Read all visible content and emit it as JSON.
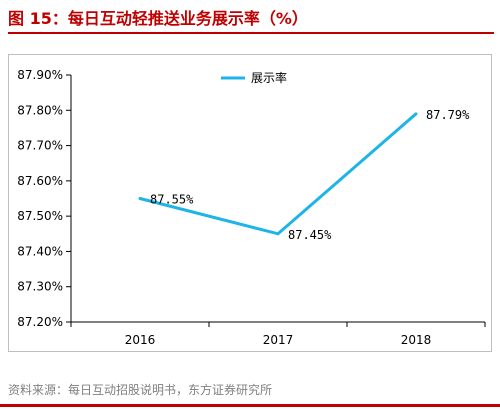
{
  "figure": {
    "title": "图 15：每日互动轻推送业务展示率（%）",
    "source": "资料来源：每日互动招股说明书，东方证券研究所"
  },
  "colors": {
    "accent": "#c00000",
    "series_line": "#1fb4e8",
    "axis": "#000000",
    "frame": "#bfbfbf",
    "source_text": "#808080"
  },
  "chart_data": {
    "type": "line",
    "x": [
      "2016",
      "2017",
      "2018"
    ],
    "series": [
      {
        "name": "展示率",
        "values": [
          87.55,
          87.45,
          87.79
        ]
      }
    ],
    "data_labels": [
      "87.55%",
      "87.45%",
      "87.79%"
    ],
    "ylim": [
      87.2,
      87.9
    ],
    "yticks": [
      87.2,
      87.3,
      87.4,
      87.5,
      87.6,
      87.7,
      87.8,
      87.9
    ],
    "ytick_labels": [
      "87.20%",
      "87.30%",
      "87.40%",
      "87.50%",
      "87.60%",
      "87.70%",
      "87.80%",
      "87.90%"
    ],
    "grid": false,
    "legend_position": "top-center",
    "xlabel": "",
    "ylabel": ""
  }
}
